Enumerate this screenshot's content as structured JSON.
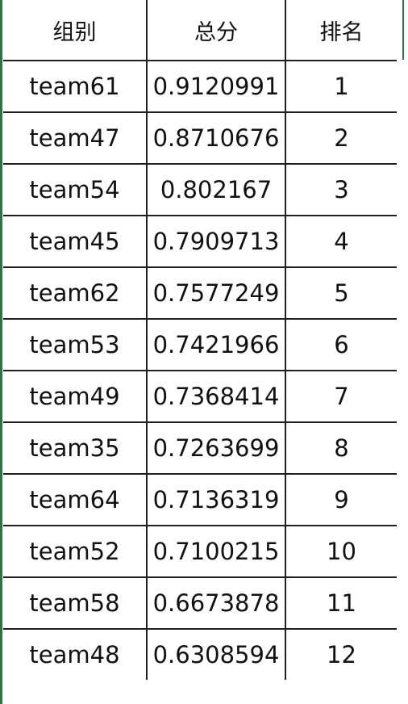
{
  "table": {
    "headers": {
      "team": "组别",
      "score": "总分",
      "rank": "排名"
    },
    "rows": [
      {
        "team": "team61",
        "score": "0.9120991",
        "rank": "1"
      },
      {
        "team": "team47",
        "score": "0.8710676",
        "rank": "2"
      },
      {
        "team": "team54",
        "score": "0.802167",
        "rank": "3"
      },
      {
        "team": "team45",
        "score": "0.7909713",
        "rank": "4"
      },
      {
        "team": "team62",
        "score": "0.7577249",
        "rank": "5"
      },
      {
        "team": "team53",
        "score": "0.7421966",
        "rank": "6"
      },
      {
        "team": "team49",
        "score": "0.7368414",
        "rank": "7"
      },
      {
        "team": "team35",
        "score": "0.7263699",
        "rank": "8"
      },
      {
        "team": "team64",
        "score": "0.7136319",
        "rank": "9"
      },
      {
        "team": "team52",
        "score": "0.7100215",
        "rank": "10"
      },
      {
        "team": "team58",
        "score": "0.6673878",
        "rank": "11"
      },
      {
        "team": "team48",
        "score": "0.6308594",
        "rank": "12"
      }
    ]
  },
  "colors": {
    "grid_line": "#1f1f1f",
    "text": "#111111",
    "accent_strip": "#3a6e4a",
    "background": "#ffffff"
  }
}
